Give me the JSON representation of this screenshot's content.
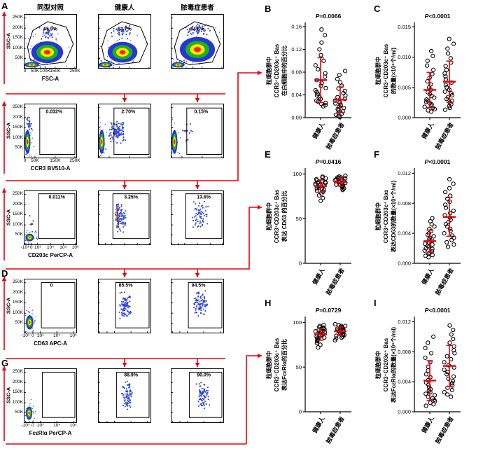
{
  "colors": {
    "accent": "#e8000b",
    "dot_blue": "#2d44e0",
    "density_palette": [
      "#2636d8",
      "#1ab41a",
      "#ffe400",
      "#ff2000"
    ]
  },
  "flow": {
    "col_titles": [
      "同型对照",
      "健康人",
      "脓毒症患者"
    ],
    "ylabel": "SSC-A",
    "yticks": [
      "250K",
      "200K",
      "150K",
      "100K",
      "50K"
    ],
    "rows": [
      {
        "letter": "A",
        "xlabel": "FSC-A",
        "xticks": [
          "0",
          "50K",
          "100K",
          "150K",
          "250K"
        ],
        "percents": [
          "65.9%",
          "63.7%",
          "84.6%"
        ],
        "plots": [
          {
            "clusters": [
              {
                "t": "core",
                "x": 0.44,
                "y": 0.7,
                "rx": 0.3,
                "ry": 0.2
              },
              {
                "t": "smear",
                "x": 0.15,
                "y": 0.93,
                "rx": 0.14,
                "ry": 0.05
              },
              {
                "t": "dots",
                "x": 0.45,
                "y": 0.34,
                "sx": 0.22,
                "sy": 0.13,
                "n": 35,
                "c": "blue"
              }
            ]
          },
          {
            "clusters": [
              {
                "t": "core",
                "x": 0.46,
                "y": 0.7,
                "rx": 0.28,
                "ry": 0.19
              },
              {
                "t": "smear",
                "x": 0.14,
                "y": 0.93,
                "rx": 0.13,
                "ry": 0.05
              },
              {
                "t": "dots",
                "x": 0.45,
                "y": 0.34,
                "sx": 0.22,
                "sy": 0.13,
                "n": 35,
                "c": "blue"
              }
            ]
          },
          {
            "clusters": [
              {
                "t": "core",
                "x": 0.5,
                "y": 0.65,
                "rx": 0.33,
                "ry": 0.23
              },
              {
                "t": "smear",
                "x": 0.14,
                "y": 0.93,
                "rx": 0.12,
                "ry": 0.05
              },
              {
                "t": "dots",
                "x": 0.5,
                "y": 0.3,
                "sx": 0.26,
                "sy": 0.14,
                "n": 45,
                "c": "blue"
              }
            ]
          }
        ]
      },
      {
        "letter": "",
        "xlabel": "CCR3 BV510-A",
        "xticks": [
          "0",
          "50K",
          "150K",
          "250K"
        ],
        "percents": [
          "0.032%",
          "2.70%",
          "0.15%"
        ],
        "plots": [
          {
            "clusters": [
              {
                "t": "core",
                "x": 0.07,
                "y": 0.7,
                "rx": 0.055,
                "ry": 0.22
              },
              {
                "t": "dots",
                "x": 0.1,
                "y": 0.38,
                "sx": 0.05,
                "sy": 0.15,
                "n": 20,
                "c": "blue"
              }
            ]
          },
          {
            "clusters": [
              {
                "t": "core",
                "x": 0.07,
                "y": 0.7,
                "rx": 0.055,
                "ry": 0.22
              },
              {
                "t": "dots",
                "x": 0.36,
                "y": 0.52,
                "sx": 0.16,
                "sy": 0.22,
                "n": 110,
                "c": "blue"
              }
            ]
          },
          {
            "clusters": [
              {
                "t": "core",
                "x": 0.07,
                "y": 0.7,
                "rx": 0.055,
                "ry": 0.22
              },
              {
                "t": "dots",
                "x": 0.3,
                "y": 0.5,
                "sx": 0.12,
                "sy": 0.2,
                "n": 14,
                "c": "blue"
              }
            ]
          }
        ]
      },
      {
        "letter": "",
        "xlabel": "CD203c PerCP-A",
        "xticks": [
          "-10³",
          "0",
          "10³",
          "10⁴",
          "10⁵",
          "10⁶"
        ],
        "percents": [
          "0.011%",
          "3.25%",
          "13.6%"
        ],
        "plots": [
          {
            "clusters": [
              {
                "t": "core",
                "x": 0.11,
                "y": 0.86,
                "rx": 0.08,
                "ry": 0.07
              },
              {
                "t": "dots",
                "x": 0.14,
                "y": 0.62,
                "sx": 0.07,
                "sy": 0.18,
                "n": 8,
                "c": "blue"
              }
            ]
          },
          {
            "clusters": [
              {
                "t": "dots",
                "x": 0.37,
                "y": 0.47,
                "sx": 0.05,
                "sy": 0.26,
                "n": 70,
                "c": "hot"
              },
              {
                "t": "dots",
                "x": 0.43,
                "y": 0.5,
                "sx": 0.11,
                "sy": 0.27,
                "n": 70,
                "c": "blue"
              }
            ]
          },
          {
            "clusters": [
              {
                "t": "dots",
                "x": 0.55,
                "y": 0.45,
                "sx": 0.17,
                "sy": 0.26,
                "n": 65,
                "c": "blue"
              }
            ]
          }
        ]
      },
      {
        "letter": "D",
        "xlabel": "CD63 APC-A",
        "xticks": [
          "-10³",
          "0",
          "10³",
          "10⁴",
          "10⁵"
        ],
        "percents": [
          "0",
          "85.5%",
          "94.5%"
        ],
        "plots": [
          {
            "clusters": [
              {
                "t": "core",
                "x": 0.11,
                "y": 0.8,
                "rx": 0.07,
                "ry": 0.13
              }
            ]
          },
          {
            "clusters": [
              {
                "t": "dots",
                "x": 0.52,
                "y": 0.5,
                "sx": 0.13,
                "sy": 0.27,
                "n": 90,
                "c": "blue"
              }
            ]
          },
          {
            "clusters": [
              {
                "t": "dots",
                "x": 0.56,
                "y": 0.45,
                "sx": 0.15,
                "sy": 0.27,
                "n": 85,
                "c": "blue"
              }
            ]
          }
        ]
      },
      {
        "letter": "G",
        "xlabel": "FcεRIα PerCP-A",
        "xticks": [
          "-10³",
          "0",
          "10³",
          "10⁴",
          "10⁵"
        ],
        "percents": [
          "",
          "88.9%",
          "90.0%"
        ],
        "plots": [
          {
            "clusters": [
              {
                "t": "core",
                "x": 0.1,
                "y": 0.82,
                "rx": 0.06,
                "ry": 0.12
              }
            ]
          },
          {
            "clusters": [
              {
                "t": "dots",
                "x": 0.55,
                "y": 0.5,
                "sx": 0.11,
                "sy": 0.28,
                "n": 80,
                "c": "blue"
              }
            ]
          },
          {
            "clusters": [
              {
                "t": "dots",
                "x": 0.6,
                "y": 0.48,
                "sx": 0.13,
                "sy": 0.27,
                "n": 75,
                "c": "blue"
              }
            ]
          }
        ]
      }
    ]
  },
  "chart_data": [
    {
      "panel": "B",
      "type": "scatter",
      "p": "P=0.0066",
      "ylabel_lines": [
        "粒细胞群中",
        "CCR3⁺CD203c⁺ Bas",
        "在白细胞中的百分比"
      ],
      "ylim": [
        0,
        0.165
      ],
      "yticks": [
        0,
        0.04,
        0.08,
        0.12,
        0.16
      ],
      "ytick_labels": [
        "0.00",
        "0.04",
        "0.08",
        "0.12",
        "0.16"
      ],
      "groups": [
        "健康人",
        "脓毒症患者"
      ],
      "series": [
        {
          "name": "健康人",
          "values": [
            0.155,
            0.145,
            0.132,
            0.12,
            0.11,
            0.1,
            0.092,
            0.085,
            0.078,
            0.072,
            0.066,
            0.061,
            0.056,
            0.052,
            0.048,
            0.045,
            0.042,
            0.039,
            0.036,
            0.033,
            0.03,
            0.028,
            0.026,
            0.024,
            0.022,
            0.02
          ]
        },
        {
          "name": "脓毒症患者",
          "values": [
            0.082,
            0.075,
            0.068,
            0.062,
            0.056,
            0.051,
            0.047,
            0.043,
            0.039,
            0.036,
            0.033,
            0.03,
            0.027,
            0.025,
            0.023,
            0.021,
            0.019,
            0.017,
            0.015,
            0.013,
            0.011,
            0.009,
            0.007,
            0.005,
            0.003,
            0.001
          ]
        }
      ]
    },
    {
      "panel": "C",
      "type": "scatter",
      "p": "P<0.0001",
      "ylabel_lines": [
        "粒细胞群中",
        "CCR3⁺CD203c⁺ Bas",
        "的数量(×10⁶个/ml)"
      ],
      "ylim": [
        0,
        0.0155
      ],
      "yticks": [
        0,
        0.005,
        0.01,
        0.015
      ],
      "ytick_labels": [
        "0.000",
        "0.005",
        "0.010",
        "0.015"
      ],
      "groups": [
        "健康人",
        "脓毒症患者"
      ],
      "series": [
        {
          "name": "健康人",
          "values": [
            0.011,
            0.0102,
            0.0094,
            0.0086,
            0.0079,
            0.0072,
            0.0066,
            0.006,
            0.0055,
            0.005,
            0.0046,
            0.0042,
            0.0039,
            0.0036,
            0.0033,
            0.003,
            0.0028,
            0.0026,
            0.0024,
            0.0022,
            0.002,
            0.0018,
            0.0016,
            0.0014,
            0.0012,
            0.001
          ]
        },
        {
          "name": "脓毒症患者",
          "values": [
            0.013,
            0.0122,
            0.0114,
            0.0106,
            0.0098,
            0.0091,
            0.0085,
            0.0079,
            0.0073,
            0.0068,
            0.0063,
            0.0058,
            0.0054,
            0.005,
            0.0046,
            0.0043,
            0.004,
            0.0037,
            0.0034,
            0.0031,
            0.0028,
            0.0025,
            0.0022,
            0.0019,
            0.0016,
            0.0013
          ]
        }
      ]
    },
    {
      "panel": "E",
      "type": "scatter",
      "p": "P=0.0416",
      "ylabel_lines": [
        "粒细胞群中",
        "CCR3⁺CD203c⁺ Bas",
        "表达 CD63 的百分比"
      ],
      "ylim": [
        0,
        105
      ],
      "yticks": [
        0,
        50,
        100
      ],
      "ytick_labels": [
        "0",
        "50",
        "100"
      ],
      "groups": [
        "健康人",
        "脓毒症患者"
      ],
      "series": [
        {
          "name": "健康人",
          "values": [
            97,
            96,
            95,
            94,
            93,
            92,
            91,
            91,
            90,
            90,
            89,
            88,
            88,
            87,
            87,
            86,
            85,
            84,
            83,
            82,
            81,
            80,
            78,
            76,
            73,
            70
          ]
        },
        {
          "name": "脓毒症患者",
          "values": [
            98,
            97,
            97,
            96,
            96,
            95,
            95,
            94,
            94,
            93,
            93,
            92,
            92,
            91,
            91,
            90,
            90,
            89,
            88,
            88,
            87,
            86,
            85,
            84,
            83,
            82
          ]
        }
      ]
    },
    {
      "panel": "F",
      "type": "scatter",
      "p": "P<0.0001",
      "ylabel_lines": [
        "粒细胞群中",
        "CCR3⁺CD203c⁺ Bas",
        "表达CD63的数量(×10⁶个/ml)"
      ],
      "ylim": [
        0,
        0.0125
      ],
      "yticks": [
        0,
        0.004,
        0.008,
        0.012
      ],
      "ytick_labels": [
        "0.000",
        "0.004",
        "0.008",
        "0.012"
      ],
      "groups": [
        "健康人",
        "脓毒症患者"
      ],
      "series": [
        {
          "name": "健康人",
          "values": [
            0.006,
            0.0056,
            0.0052,
            0.0049,
            0.0046,
            0.0043,
            0.004,
            0.0038,
            0.0036,
            0.0034,
            0.0032,
            0.003,
            0.0028,
            0.0026,
            0.0025,
            0.0023,
            0.0022,
            0.002,
            0.0019,
            0.0017,
            0.0016,
            0.0014,
            0.0013,
            0.0011,
            0.001,
            0.0008
          ]
        },
        {
          "name": "脓毒症患者",
          "values": [
            0.0112,
            0.0106,
            0.01,
            0.0095,
            0.009,
            0.0086,
            0.0082,
            0.0078,
            0.0074,
            0.007,
            0.0067,
            0.0064,
            0.0061,
            0.0058,
            0.0055,
            0.0052,
            0.0049,
            0.0046,
            0.0043,
            0.004,
            0.0037,
            0.0034,
            0.0031,
            0.0028,
            0.0025,
            0.0022
          ]
        }
      ]
    },
    {
      "panel": "H",
      "type": "scatter",
      "p": "P=0.0729",
      "ylabel_lines": [
        "粒细胞群中",
        "CCR3⁺CD203c⁺ Bas",
        "表达FcεRIα的百分比"
      ],
      "ylim": [
        0,
        105
      ],
      "yticks": [
        0,
        50,
        100
      ],
      "ytick_labels": [
        "0",
        "50",
        "100"
      ],
      "groups": [
        "健康人",
        "脓毒症患者"
      ],
      "series": [
        {
          "name": "健康人",
          "values": [
            97,
            96,
            95,
            94,
            93,
            93,
            92,
            91,
            90,
            90,
            89,
            88,
            88,
            87,
            86,
            86,
            85,
            84,
            83,
            82,
            81,
            80,
            79,
            77,
            75,
            72
          ]
        },
        {
          "name": "脓毒症患者",
          "values": [
            98,
            97,
            96,
            96,
            95,
            94,
            94,
            93,
            93,
            92,
            92,
            91,
            91,
            90,
            90,
            89,
            89,
            88,
            87,
            86,
            86,
            85,
            84,
            83,
            82,
            80
          ]
        }
      ]
    },
    {
      "panel": "I",
      "type": "scatter",
      "p": "P<0.0001",
      "ylabel_lines": [
        "粒细胞群中",
        "CCR3⁺CD203c⁺ Bas",
        "表达FcεRIα的数量(×10⁶个/ml)"
      ],
      "ylim": [
        0,
        0.0125
      ],
      "yticks": [
        0,
        0.004,
        0.008,
        0.012
      ],
      "ytick_labels": [
        "0.000",
        "0.004",
        "0.008",
        "0.012"
      ],
      "groups": [
        "健康人",
        "脓毒症患者"
      ],
      "series": [
        {
          "name": "健康人",
          "values": [
            0.01,
            0.0092,
            0.0085,
            0.0078,
            0.0072,
            0.0066,
            0.006,
            0.0055,
            0.005,
            0.0046,
            0.0042,
            0.0039,
            0.0036,
            0.0033,
            0.003,
            0.0028,
            0.0026,
            0.0024,
            0.0022,
            0.002,
            0.0018,
            0.0016,
            0.0014,
            0.0012,
            0.001,
            0.0008
          ]
        },
        {
          "name": "脓毒症患者",
          "values": [
            0.0115,
            0.0109,
            0.0103,
            0.0097,
            0.0092,
            0.0087,
            0.0082,
            0.0078,
            0.0074,
            0.007,
            0.0066,
            0.0062,
            0.0059,
            0.0056,
            0.0053,
            0.005,
            0.0047,
            0.0044,
            0.0041,
            0.0038,
            0.0035,
            0.0032,
            0.0029,
            0.0026,
            0.0023,
            0.002
          ]
        }
      ]
    }
  ]
}
